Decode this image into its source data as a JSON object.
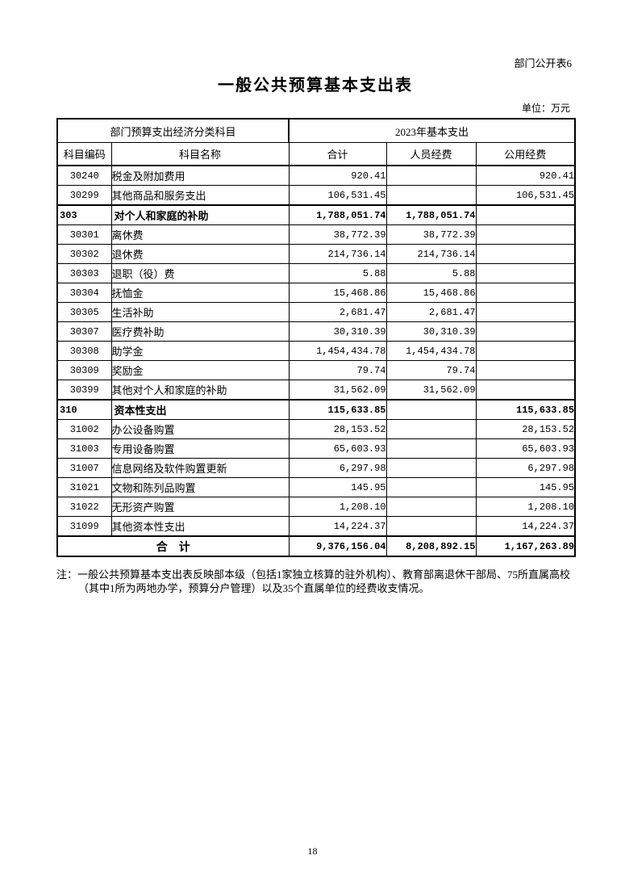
{
  "page": {
    "sheet_label": "部门公开表6",
    "title": "一般公共预算基本支出表",
    "unit_label": "单位：万元",
    "note_prefix": "注：",
    "note_text": "一般公共预算基本支出表反映部本级（包括1家独立核算的驻外机构）、教育部离退休干部局、75所直属高校（其中1所为两地办学，预算分户管理）以及35个直属单位的经费收支情况。",
    "page_number": "18"
  },
  "colors": {
    "background": "#ffffff",
    "text": "#000000",
    "border": "#000000"
  },
  "table": {
    "header": {
      "group_left": "部门预算支出经济分类科目",
      "group_right": "2023年基本支出",
      "columns": [
        "科目编码",
        "科目名称",
        "合计",
        "人员经费",
        "公用经费"
      ]
    },
    "rows": [
      {
        "level": "child",
        "code": "30240",
        "name": "税金及附加费用",
        "total": "920.41",
        "personnel": "",
        "public": "920.41"
      },
      {
        "level": "child",
        "code": "30299",
        "name": "其他商品和服务支出",
        "total": "106,531.45",
        "personnel": "",
        "public": "106,531.45"
      },
      {
        "level": "section",
        "code": "303",
        "name": "对个人和家庭的补助",
        "total": "1,788,051.74",
        "personnel": "1,788,051.74",
        "public": ""
      },
      {
        "level": "child",
        "code": "30301",
        "name": "离休费",
        "total": "38,772.39",
        "personnel": "38,772.39",
        "public": ""
      },
      {
        "level": "child",
        "code": "30302",
        "name": "退休费",
        "total": "214,736.14",
        "personnel": "214,736.14",
        "public": ""
      },
      {
        "level": "child",
        "code": "30303",
        "name": "退职（役）费",
        "total": "5.88",
        "personnel": "5.88",
        "public": ""
      },
      {
        "level": "child",
        "code": "30304",
        "name": "抚恤金",
        "total": "15,468.86",
        "personnel": "15,468.86",
        "public": ""
      },
      {
        "level": "child",
        "code": "30305",
        "name": "生活补助",
        "total": "2,681.47",
        "personnel": "2,681.47",
        "public": ""
      },
      {
        "level": "child",
        "code": "30307",
        "name": "医疗费补助",
        "total": "30,310.39",
        "personnel": "30,310.39",
        "public": ""
      },
      {
        "level": "child",
        "code": "30308",
        "name": "助学金",
        "total": "1,454,434.78",
        "personnel": "1,454,434.78",
        "public": ""
      },
      {
        "level": "child",
        "code": "30309",
        "name": "奖励金",
        "total": "79.74",
        "personnel": "79.74",
        "public": ""
      },
      {
        "level": "child",
        "code": "30399",
        "name": "其他对个人和家庭的补助",
        "total": "31,562.09",
        "personnel": "31,562.09",
        "public": ""
      },
      {
        "level": "section",
        "code": "310",
        "name": "资本性支出",
        "total": "115,633.85",
        "personnel": "",
        "public": "115,633.85"
      },
      {
        "level": "child",
        "code": "31002",
        "name": "办公设备购置",
        "total": "28,153.52",
        "personnel": "",
        "public": "28,153.52"
      },
      {
        "level": "child",
        "code": "31003",
        "name": "专用设备购置",
        "total": "65,603.93",
        "personnel": "",
        "public": "65,603.93"
      },
      {
        "level": "child",
        "code": "31007",
        "name": "信息网络及软件购置更新",
        "total": "6,297.98",
        "personnel": "",
        "public": "6,297.98"
      },
      {
        "level": "child",
        "code": "31021",
        "name": "文物和陈列品购置",
        "total": "145.95",
        "personnel": "",
        "public": "145.95"
      },
      {
        "level": "child",
        "code": "31022",
        "name": "无形资产购置",
        "total": "1,208.10",
        "personnel": "",
        "public": "1,208.10"
      },
      {
        "level": "child",
        "code": "31099",
        "name": "其他资本性支出",
        "total": "14,224.37",
        "personnel": "",
        "public": "14,224.37"
      },
      {
        "level": "grand",
        "code": "",
        "name": "合　计",
        "total": "9,376,156.04",
        "personnel": "8,208,892.15",
        "public": "1,167,263.89"
      }
    ]
  }
}
